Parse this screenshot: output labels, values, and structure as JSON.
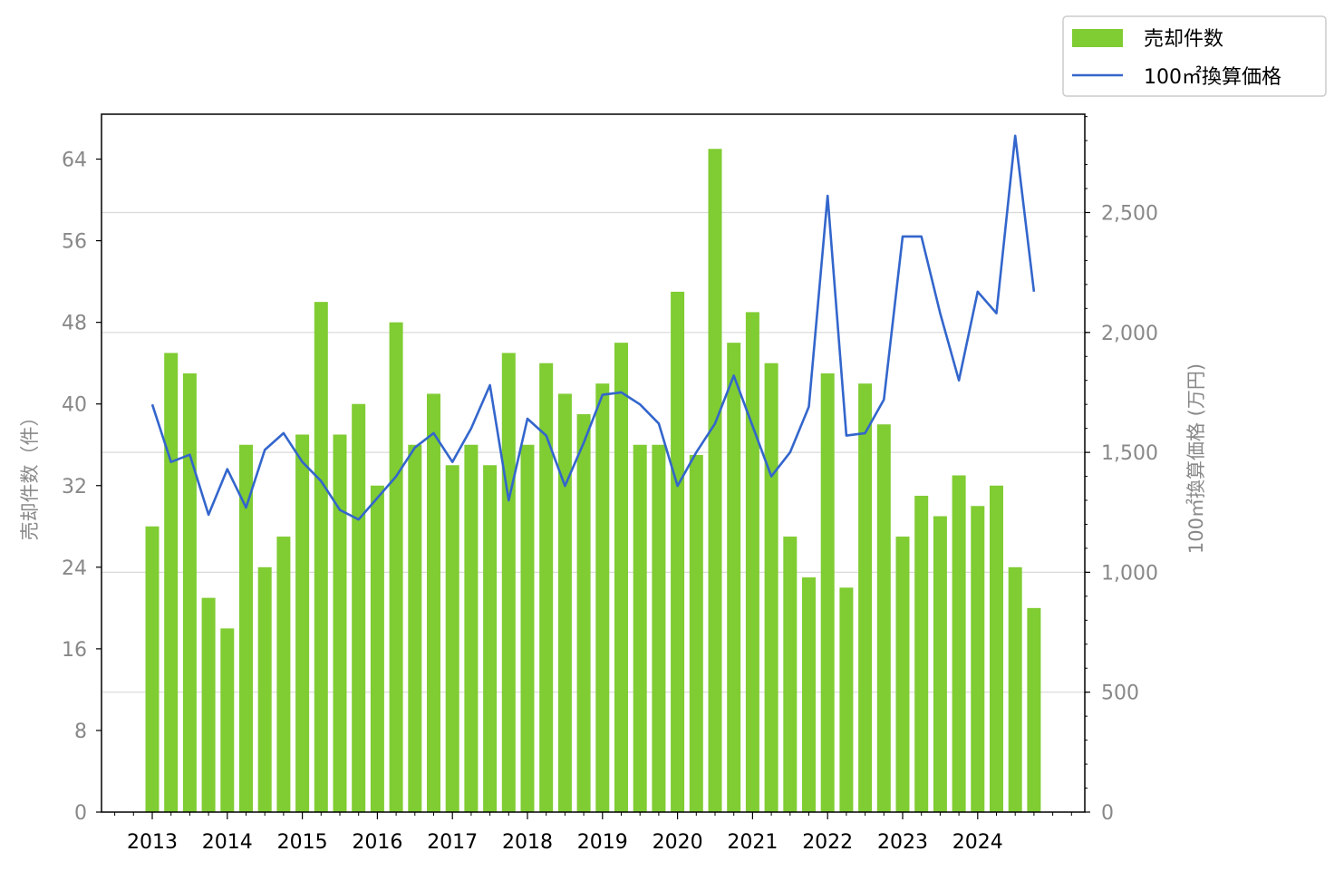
{
  "chart_data": {
    "type": "bar",
    "title": "",
    "xlabel": "",
    "ylabel_left": "売却件数（件）",
    "ylabel_right": "100㎡換算価格 (万円)",
    "x_tick_labels": [
      "2013",
      "2014",
      "2015",
      "2016",
      "2017",
      "2018",
      "2019",
      "2020",
      "2021",
      "2022",
      "2023",
      "2024"
    ],
    "y_left_ticks": [
      "0",
      "8",
      "16",
      "24",
      "32",
      "40",
      "48",
      "56",
      "64"
    ],
    "y_right_ticks": [
      "0",
      "500",
      "1,000",
      "1,500",
      "2,000",
      "2,500"
    ],
    "ylim_left": [
      0,
      68.4
    ],
    "ylim_right": [
      0,
      2910
    ],
    "grid": "horizontal on right axis",
    "legend_position": "top-right, outside plot",
    "periods": [
      "2013 Q1",
      "2013 Q2",
      "2013 Q3",
      "2013 Q4",
      "2014 Q1",
      "2014 Q2",
      "2014 Q3",
      "2014 Q4",
      "2015 Q1",
      "2015 Q2",
      "2015 Q3",
      "2015 Q4",
      "2016 Q1",
      "2016 Q2",
      "2016 Q3",
      "2016 Q4",
      "2017 Q1",
      "2017 Q2",
      "2017 Q3",
      "2017 Q4",
      "2018 Q1",
      "2018 Q2",
      "2018 Q3",
      "2018 Q4",
      "2019 Q1",
      "2019 Q2",
      "2019 Q3",
      "2019 Q4",
      "2020 Q1",
      "2020 Q2",
      "2020 Q3",
      "2020 Q4",
      "2021 Q1",
      "2021 Q2",
      "2021 Q3",
      "2021 Q4",
      "2022 Q1",
      "2022 Q2",
      "2022 Q3",
      "2022 Q4",
      "2023 Q1",
      "2023 Q2",
      "2023 Q3",
      "2023 Q4",
      "2024 Q1",
      "2024 Q2",
      "2024 Q3",
      "2024 Q4"
    ],
    "series": [
      {
        "name": "売却件数",
        "type": "bar",
        "axis": "left",
        "color": "#80cc33",
        "values": [
          28,
          45,
          43,
          21,
          18,
          36,
          24,
          27,
          37,
          50,
          37,
          40,
          32,
          48,
          36,
          41,
          34,
          36,
          34,
          45,
          36,
          44,
          41,
          39,
          42,
          46,
          36,
          36,
          51,
          35,
          65,
          46,
          49,
          44,
          27,
          23,
          43,
          22,
          42,
          38,
          27,
          31,
          29,
          33,
          30,
          32,
          24,
          20
        ]
      },
      {
        "name": "100㎡換算価格",
        "type": "line",
        "axis": "right",
        "color": "#3366cc",
        "values": [
          1700,
          1460,
          1490,
          1240,
          1430,
          1270,
          1510,
          1580,
          1460,
          1380,
          1260,
          1220,
          1310,
          1400,
          1520,
          1580,
          1460,
          1600,
          1780,
          1300,
          1640,
          1570,
          1360,
          1540,
          1740,
          1750,
          1700,
          1620,
          1360,
          1500,
          1620,
          1820,
          1610,
          1400,
          1500,
          1690,
          2570,
          1570,
          1580,
          1720,
          2400,
          2400,
          2080,
          1800,
          2170,
          2080,
          2820,
          2170
        ]
      }
    ]
  }
}
